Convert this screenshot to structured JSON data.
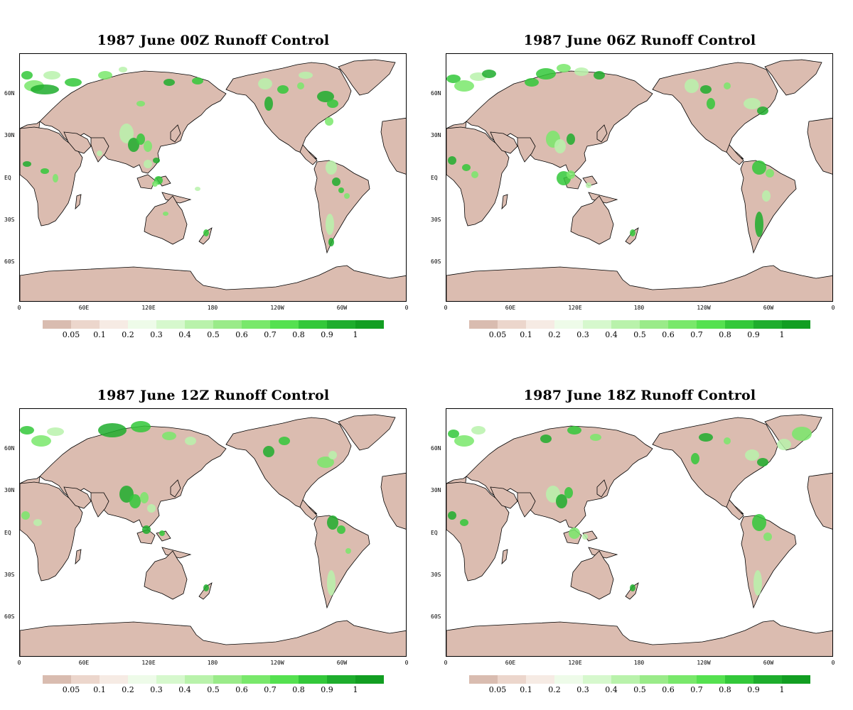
{
  "panels": [
    {
      "title": "1987 June 00Z Runoff Control"
    },
    {
      "title": "1987  June 06Z Runoff Control"
    },
    {
      "title": "1987  June 12Z Runoff Control"
    },
    {
      "title": "1987  June 18Z Runoff Control"
    }
  ],
  "lat_labels": [
    "60N",
    "30N",
    "EQ",
    "30S",
    "60S"
  ],
  "lon_labels": [
    "0",
    "60E",
    "120E",
    "180",
    "120W",
    "60W",
    "0"
  ],
  "colorbar": {
    "labels": [
      "0.05",
      "0.1",
      "0.2",
      "0.3",
      "0.4",
      "0.5",
      "0.6",
      "0.7",
      "0.8",
      "0.9",
      "1"
    ],
    "colors": [
      "#d9bcb0",
      "#ecd6cc",
      "#f6ebe4",
      "#eefbe9",
      "#d6f8cd",
      "#b9f2ab",
      "#9aeb89",
      "#79e86b",
      "#55e150",
      "#33c83a",
      "#1ead2d",
      "#129e22"
    ]
  },
  "colors": {
    "land": "#dbbcb0",
    "ocean": "#ffffff",
    "coast": "#000000"
  }
}
